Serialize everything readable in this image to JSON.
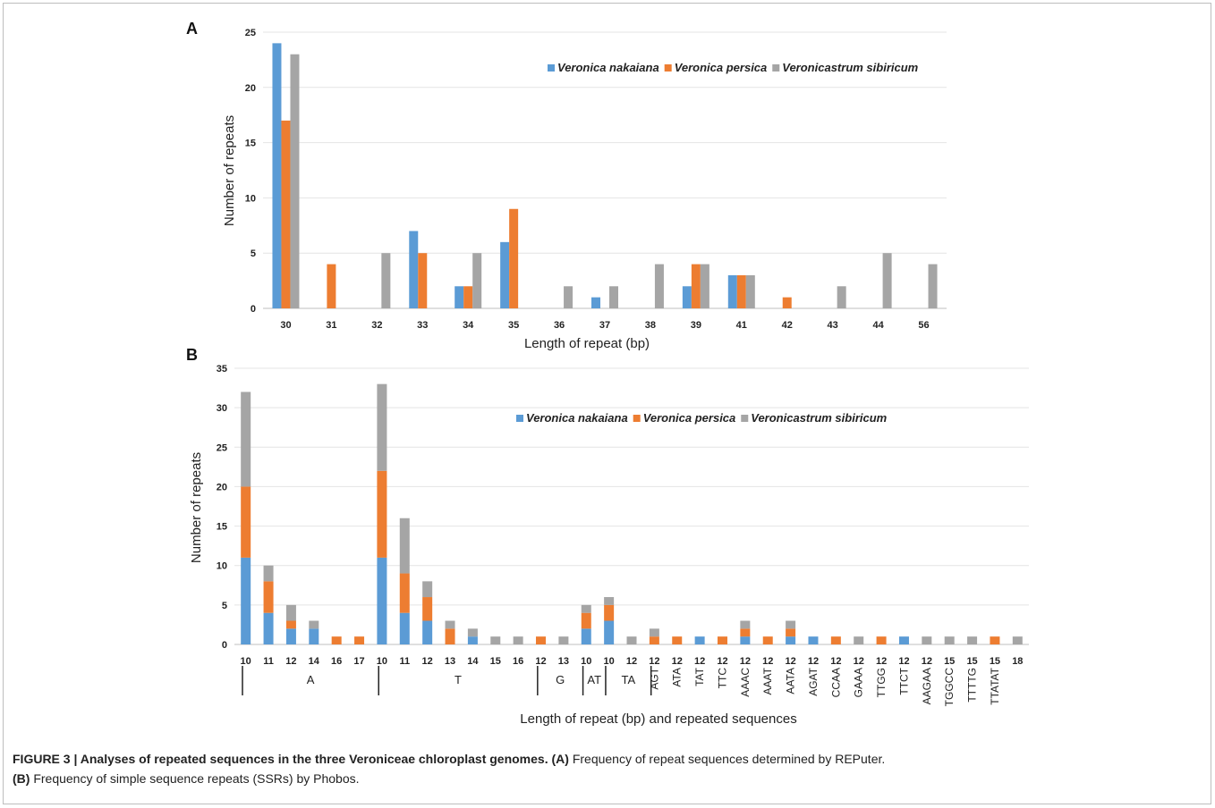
{
  "colors": {
    "nakaiana": "#5b9bd5",
    "persica": "#ed7d31",
    "sibiricum": "#a5a5a5"
  },
  "chart_data": [
    {
      "panel_label": "A",
      "type": "bar",
      "ylabel": "Number of repeats",
      "xlabel": "Length of repeat (bp)",
      "ylim": [
        0,
        25
      ],
      "yticks": [
        0,
        5,
        10,
        15,
        20,
        25
      ],
      "legend_position": "top-right",
      "categories": [
        "30",
        "31",
        "32",
        "33",
        "34",
        "35",
        "36",
        "37",
        "38",
        "39",
        "41",
        "42",
        "43",
        "44",
        "56"
      ],
      "series": [
        {
          "name": "Veronica nakaiana",
          "values": [
            24,
            0,
            0,
            7,
            2,
            6,
            0,
            1,
            0,
            2,
            3,
            0,
            0,
            0,
            0
          ]
        },
        {
          "name": "Veronica persica",
          "values": [
            17,
            4,
            0,
            5,
            2,
            9,
            0,
            0,
            0,
            4,
            3,
            1,
            0,
            0,
            0
          ]
        },
        {
          "name": "Veronicastrum sibiricum",
          "values": [
            23,
            0,
            5,
            0,
            5,
            0,
            2,
            2,
            4,
            4,
            3,
            0,
            2,
            5,
            4
          ]
        }
      ]
    },
    {
      "panel_label": "B",
      "type": "bar",
      "stacked": true,
      "ylabel": "Number of repeats",
      "xlabel": "Length of repeat (bp) and repeated sequences",
      "ylim": [
        0,
        35
      ],
      "yticks": [
        0,
        5,
        10,
        15,
        20,
        25,
        30,
        35
      ],
      "legend_position": "top-center",
      "categories": [
        "10",
        "11",
        "12",
        "14",
        "16",
        "17",
        "10",
        "11",
        "12",
        "13",
        "14",
        "15",
        "16",
        "12",
        "13",
        "10",
        "10",
        "12",
        "12",
        "12",
        "12",
        "12",
        "12",
        "12",
        "12",
        "12",
        "12",
        "12",
        "12",
        "12",
        "12",
        "15",
        "15",
        "15",
        "18"
      ],
      "groups": [
        {
          "label": "A",
          "count": 6
        },
        {
          "label": "T",
          "count": 7
        },
        {
          "label": "G",
          "count": 2
        },
        {
          "label": "AT",
          "count": 1
        },
        {
          "label": "TA",
          "count": 2
        }
      ],
      "motifs": [
        "AGT",
        "ATA",
        "TAT",
        "TTC",
        "AAAC",
        "AAAT",
        "AATA",
        "AGAT",
        "CCAA",
        "GAAA",
        "TTGG",
        "TTCT",
        "AAGAA",
        "TGGCC",
        "TTTTG",
        "TTATAT"
      ],
      "series": [
        {
          "name": "Veronica nakaiana",
          "values": [
            11,
            4,
            2,
            2,
            0,
            0,
            11,
            4,
            3,
            0,
            1,
            0,
            0,
            0,
            0,
            2,
            3,
            0,
            0,
            0,
            1,
            0,
            1,
            0,
            1,
            1,
            0,
            0,
            0,
            1,
            0,
            0,
            0,
            0,
            0
          ]
        },
        {
          "name": "Veronica persica",
          "values": [
            9,
            4,
            1,
            0,
            1,
            1,
            11,
            5,
            3,
            2,
            0,
            0,
            0,
            1,
            0,
            2,
            2,
            0,
            1,
            1,
            0,
            1,
            1,
            1,
            1,
            0,
            1,
            0,
            1,
            0,
            0,
            0,
            0,
            1,
            0
          ]
        },
        {
          "name": "Veronicastrum sibiricum",
          "values": [
            12,
            2,
            2,
            1,
            0,
            0,
            11,
            7,
            2,
            1,
            1,
            1,
            1,
            0,
            1,
            1,
            1,
            1,
            1,
            0,
            0,
            0,
            1,
            0,
            1,
            0,
            0,
            1,
            0,
            0,
            1,
            1,
            1,
            0,
            1
          ]
        }
      ]
    }
  ],
  "caption": {
    "bold_text": "FIGURE 3 | Analyses of repeated sequences in the three Veroniceae chloroplast genomes.",
    "a_ref": "(A)",
    "a_text": " Frequency of repeat sequences determined by REPuter.",
    "b_ref": "(B)",
    "b_text": " Frequency of simple sequence repeats (SSRs) by Phobos."
  }
}
